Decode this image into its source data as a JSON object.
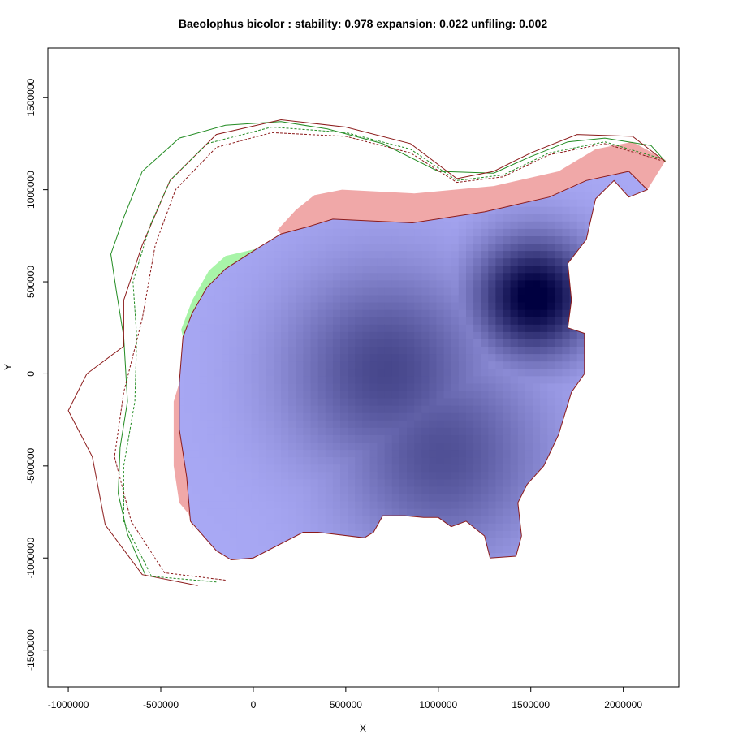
{
  "chart_data": {
    "type": "heatmap",
    "title": "Baeolophus bicolor : stability: 0.978 expansion: 0.022 unfiling: 0.002",
    "xlabel": "X",
    "ylabel": "Y",
    "xlim": [
      -1110000,
      2300000
    ],
    "ylim": [
      -1700000,
      1770000
    ],
    "x_ticks": [
      -1000000,
      -500000,
      0,
      500000,
      1000000,
      1500000,
      2000000
    ],
    "x_tick_labels": [
      "-1000000",
      "-500000",
      "0",
      "500000",
      "1000000",
      "1500000",
      "2000000"
    ],
    "y_ticks": [
      -1500000,
      -1000000,
      -500000,
      0,
      500000,
      1000000,
      1500000
    ],
    "y_tick_labels": [
      "-1500000",
      "-1000000",
      "-500000",
      "0",
      "500000",
      "1000000",
      "1500000"
    ],
    "stability": 0.978,
    "expansion": 0.022,
    "unfilling": 0.002,
    "density_peaks": [
      {
        "x": 1500000,
        "y": 400000,
        "intensity": 1.0
      },
      {
        "x": 700000,
        "y": 0,
        "intensity": 0.55
      },
      {
        "x": 1000000,
        "y": -450000,
        "intensity": 0.5
      }
    ],
    "colors": {
      "stability_low": "#a8a8f4",
      "stability_high": "#000040",
      "expansion": "#f0a8a8",
      "unfilling": "#a8f4a8",
      "native_contour": "#228B22",
      "invaded_contour": "#8B1A1A"
    },
    "regions": {
      "core": [
        [
          -380000,
          200000
        ],
        [
          -330000,
          330000
        ],
        [
          -250000,
          470000
        ],
        [
          -150000,
          570000
        ],
        [
          20000,
          680000
        ],
        [
          150000,
          760000
        ],
        [
          300000,
          800000
        ],
        [
          430000,
          840000
        ],
        [
          860000,
          820000
        ],
        [
          1250000,
          880000
        ],
        [
          1600000,
          960000
        ],
        [
          1800000,
          1050000
        ],
        [
          2030000,
          1100000
        ],
        [
          2130000,
          1000000
        ],
        [
          2030000,
          960000
        ],
        [
          1950000,
          1050000
        ],
        [
          1850000,
          950000
        ],
        [
          1800000,
          730000
        ],
        [
          1700000,
          600000
        ],
        [
          1720000,
          400000
        ],
        [
          1700000,
          250000
        ],
        [
          1790000,
          220000
        ],
        [
          1790000,
          0
        ],
        [
          1720000,
          -100000
        ],
        [
          1650000,
          -330000
        ],
        [
          1570000,
          -500000
        ],
        [
          1480000,
          -600000
        ],
        [
          1430000,
          -700000
        ],
        [
          1450000,
          -880000
        ],
        [
          1420000,
          -990000
        ],
        [
          1280000,
          -1000000
        ],
        [
          1250000,
          -880000
        ],
        [
          1150000,
          -800000
        ],
        [
          1070000,
          -830000
        ],
        [
          1000000,
          -780000
        ],
        [
          920000,
          -780000
        ],
        [
          820000,
          -770000
        ],
        [
          700000,
          -770000
        ],
        [
          650000,
          -860000
        ],
        [
          600000,
          -890000
        ],
        [
          350000,
          -860000
        ],
        [
          270000,
          -860000
        ],
        [
          0,
          -1000000
        ],
        [
          -120000,
          -1010000
        ],
        [
          -200000,
          -960000
        ],
        [
          -340000,
          -800000
        ],
        [
          -360000,
          -560000
        ],
        [
          -400000,
          -300000
        ],
        [
          -400000,
          -50000
        ]
      ],
      "expansion_top": [
        [
          130000,
          780000
        ],
        [
          230000,
          890000
        ],
        [
          330000,
          970000
        ],
        [
          480000,
          1000000
        ],
        [
          870000,
          980000
        ],
        [
          1300000,
          1020000
        ],
        [
          1650000,
          1100000
        ],
        [
          1850000,
          1220000
        ],
        [
          2050000,
          1260000
        ],
        [
          2230000,
          1160000
        ],
        [
          2130000,
          1000000
        ],
        [
          2030000,
          1100000
        ],
        [
          1800000,
          1050000
        ],
        [
          1600000,
          960000
        ],
        [
          1250000,
          880000
        ],
        [
          860000,
          820000
        ],
        [
          430000,
          840000
        ],
        [
          300000,
          800000
        ],
        [
          150000,
          760000
        ]
      ],
      "expansion_left": [
        [
          -430000,
          -500000
        ],
        [
          -400000,
          -700000
        ],
        [
          -350000,
          -760000
        ],
        [
          -320000,
          -850000
        ],
        [
          -340000,
          -800000
        ],
        [
          -360000,
          -560000
        ],
        [
          -400000,
          -300000
        ],
        [
          -400000,
          -50000
        ],
        [
          -430000,
          -150000
        ]
      ],
      "unfilling_left": [
        [
          -390000,
          240000
        ],
        [
          -330000,
          400000
        ],
        [
          -240000,
          560000
        ],
        [
          -150000,
          640000
        ],
        [
          20000,
          680000
        ],
        [
          -150000,
          570000
        ],
        [
          -250000,
          470000
        ],
        [
          -330000,
          330000
        ],
        [
          -380000,
          200000
        ]
      ]
    },
    "contours": {
      "green_outer": [
        [
          -580000,
          -1100000
        ],
        [
          -680000,
          -870000
        ],
        [
          -730000,
          -650000
        ],
        [
          -720000,
          -400000
        ],
        [
          -680000,
          -150000
        ],
        [
          -700000,
          200000
        ],
        [
          -740000,
          450000
        ],
        [
          -770000,
          650000
        ],
        [
          -700000,
          850000
        ],
        [
          -600000,
          1100000
        ],
        [
          -400000,
          1280000
        ],
        [
          -150000,
          1350000
        ],
        [
          150000,
          1370000
        ],
        [
          400000,
          1330000
        ],
        [
          700000,
          1250000
        ],
        [
          1000000,
          1100000
        ],
        [
          1300000,
          1090000
        ],
        [
          1500000,
          1180000
        ],
        [
          1700000,
          1260000
        ],
        [
          1900000,
          1280000
        ],
        [
          2150000,
          1240000
        ],
        [
          2230000,
          1150000
        ]
      ],
      "red_outer": [
        [
          -300000,
          -1150000
        ],
        [
          -600000,
          -1090000
        ],
        [
          -800000,
          -820000
        ],
        [
          -870000,
          -450000
        ],
        [
          -1000000,
          -200000
        ],
        [
          -900000,
          0
        ],
        [
          -700000,
          150000
        ],
        [
          -700000,
          400000
        ],
        [
          -600000,
          700000
        ],
        [
          -450000,
          1050000
        ],
        [
          -200000,
          1300000
        ],
        [
          150000,
          1380000
        ],
        [
          500000,
          1340000
        ],
        [
          850000,
          1250000
        ],
        [
          1100000,
          1060000
        ],
        [
          1300000,
          1100000
        ],
        [
          1500000,
          1200000
        ],
        [
          1750000,
          1300000
        ],
        [
          2050000,
          1290000
        ],
        [
          2230000,
          1150000
        ]
      ],
      "green_dash": [
        [
          -200000,
          -1130000
        ],
        [
          -550000,
          -1100000
        ],
        [
          -700000,
          -800000
        ],
        [
          -700000,
          -500000
        ],
        [
          -640000,
          -150000
        ],
        [
          -630000,
          200000
        ],
        [
          -650000,
          500000
        ],
        [
          -560000,
          800000
        ],
        [
          -450000,
          1050000
        ],
        [
          -250000,
          1250000
        ],
        [
          100000,
          1340000
        ],
        [
          500000,
          1310000
        ],
        [
          850000,
          1220000
        ],
        [
          1100000,
          1050000
        ],
        [
          1350000,
          1080000
        ],
        [
          1600000,
          1200000
        ],
        [
          1900000,
          1260000
        ],
        [
          2200000,
          1170000
        ]
      ],
      "red_dash": [
        [
          -150000,
          -1120000
        ],
        [
          -480000,
          -1080000
        ],
        [
          -660000,
          -800000
        ],
        [
          -750000,
          -450000
        ],
        [
          -700000,
          -100000
        ],
        [
          -600000,
          300000
        ],
        [
          -530000,
          700000
        ],
        [
          -420000,
          1000000
        ],
        [
          -200000,
          1230000
        ],
        [
          100000,
          1310000
        ],
        [
          500000,
          1290000
        ],
        [
          850000,
          1200000
        ],
        [
          1100000,
          1040000
        ],
        [
          1350000,
          1070000
        ],
        [
          1600000,
          1190000
        ],
        [
          1900000,
          1250000
        ],
        [
          2200000,
          1160000
        ]
      ]
    }
  }
}
